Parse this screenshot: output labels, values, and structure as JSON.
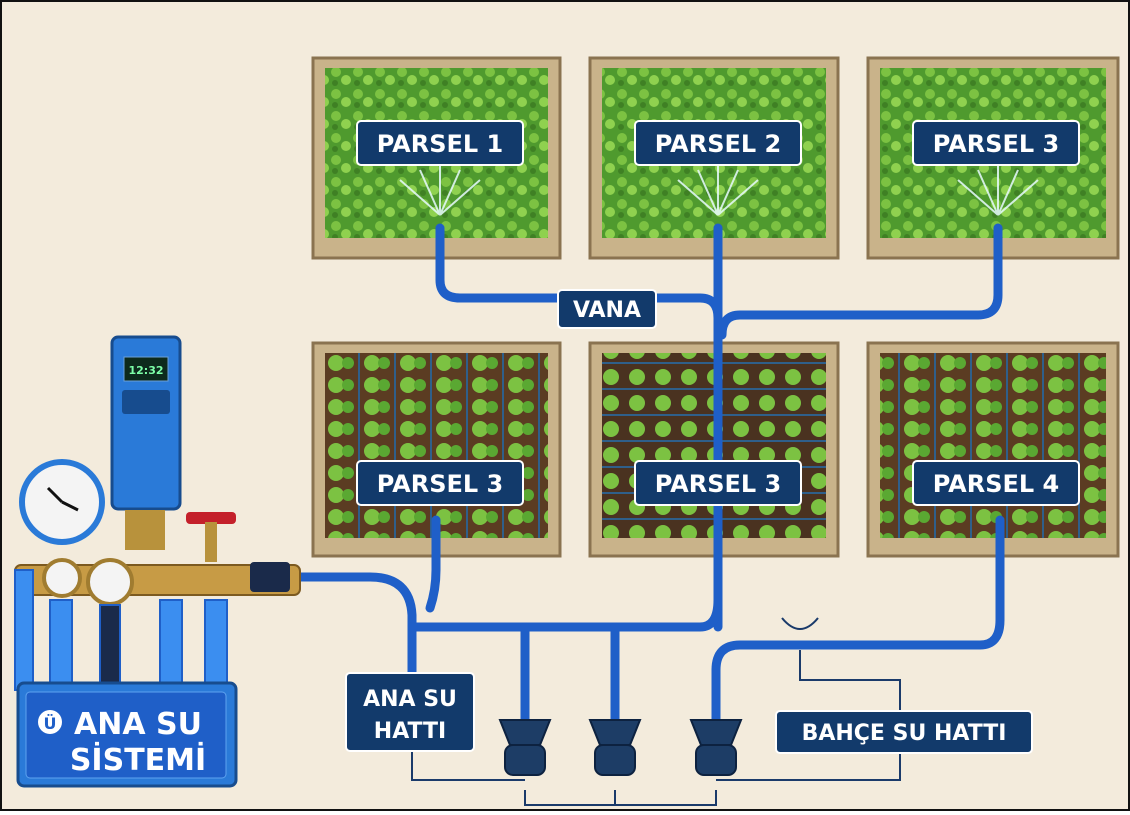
{
  "parcels": [
    {
      "label": "PARSEL 1"
    },
    {
      "label": "PARSEL 2"
    },
    {
      "label": "PARSEL 3"
    },
    {
      "label": "PARSEL 3"
    },
    {
      "label": "PARSEL 3"
    },
    {
      "label": "PARSEL 4"
    }
  ],
  "labels": {
    "valve": "VANA",
    "main_line": [
      "ANA SU",
      "HATTI"
    ],
    "garden_line": "BAHÇE SU HATTI",
    "system": [
      "ANA SU",
      "SİSTEMİ"
    ],
    "system_icon": "Ü",
    "timer_display": "12:32"
  }
}
